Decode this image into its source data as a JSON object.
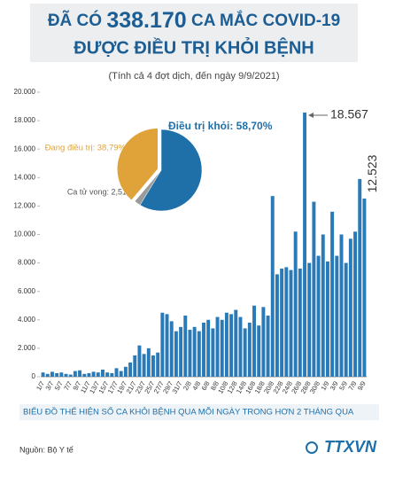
{
  "header": {
    "title": [
      "ĐÃ CÓ ",
      "338.170",
      " CA MẮC COVID-19",
      "ĐƯỢC ĐIỀU TRỊ KHỎI BỆNH"
    ],
    "subtitle": "(Tính cả 4 đợt dịch, đến ngày 9/9/2021)"
  },
  "caption": "BIỂU ĐỒ THỂ HIỆN SỐ CA KHỎI BỆNH QUA MỖI NGÀY TRONG HƠN 2 THÁNG QUA",
  "source": "Nguồn: Bộ Y tế",
  "logo": "TTXVN",
  "chart_data": [
    {
      "type": "bar",
      "color": "#2a7ab8",
      "categories": [
        "1/7",
        null,
        "3/7",
        null,
        "5/7",
        null,
        "7/7",
        null,
        "9/7",
        null,
        "11/7",
        null,
        "13/7",
        null,
        "15/7",
        null,
        "17/7",
        null,
        "19/7",
        null,
        "21/7",
        null,
        "23/7",
        null,
        "25/7",
        null,
        "27/7",
        null,
        "29/7",
        null,
        "31/7",
        null,
        "2/8",
        null,
        "4/8",
        null,
        "6/8",
        null,
        "8/8",
        null,
        "10/8",
        null,
        "12/8",
        null,
        "14/8",
        null,
        "16/8",
        null,
        "18/8",
        null,
        "20/8",
        null,
        "22/8",
        null,
        "24/8",
        null,
        "26/8",
        null,
        "28/8",
        null,
        "30/8",
        null,
        "1/9",
        null,
        "3/9",
        null,
        "5/9",
        null,
        "7/9",
        null,
        "9/9"
      ],
      "values": [
        300,
        200,
        350,
        250,
        300,
        200,
        150,
        400,
        450,
        200,
        250,
        350,
        300,
        500,
        300,
        250,
        600,
        400,
        700,
        1000,
        1500,
        2200,
        1600,
        2000,
        1500,
        1700,
        4500,
        4400,
        3900,
        3200,
        3500,
        4300,
        3300,
        3500,
        3200,
        3800,
        4000,
        3400,
        4200,
        4000,
        4500,
        4400,
        4700,
        4200,
        3400,
        3800,
        5000,
        3600,
        4900,
        4300,
        12700,
        7200,
        7600,
        7700,
        7500,
        10200,
        7600,
        18567,
        8000,
        12300,
        8500,
        10000,
        8100,
        11600,
        8500,
        10000,
        8000,
        9700,
        10200,
        13900,
        12523
      ],
      "value_labels": [
        null,
        null,
        null,
        null,
        null,
        null,
        null,
        null,
        null,
        null,
        null,
        null,
        null,
        null,
        null,
        null,
        null,
        null,
        null,
        null,
        null,
        null,
        null,
        null,
        null,
        null,
        null,
        null,
        null,
        null,
        null,
        null,
        null,
        null,
        null,
        null,
        null,
        null,
        null,
        null,
        null,
        null,
        null,
        null,
        null,
        null,
        null,
        null,
        null,
        null,
        null,
        null,
        null,
        null,
        null,
        null,
        null,
        "18.567",
        null,
        null,
        null,
        null,
        null,
        null,
        null,
        null,
        null,
        null,
        null,
        null,
        "12.523"
      ],
      "ylim": [
        0,
        20000
      ],
      "yticks": [
        0,
        {
          "value": 2000,
          "label": "2.000"
        },
        {
          "value": 4000,
          "label": "4.000"
        },
        {
          "value": 6000,
          "label": "6.000"
        },
        {
          "value": 8000,
          "label": "8.000"
        },
        {
          "value": 10000,
          "label": "10.000"
        },
        {
          "value": 12000,
          "label": "12.000"
        },
        {
          "value": 14000,
          "label": "14.000"
        },
        {
          "value": 16000,
          "label": "16.000"
        },
        {
          "value": 18000,
          "label": "18.000"
        },
        {
          "value": 20000,
          "label": "20.000"
        }
      ],
      "grid": false
    },
    {
      "type": "pie",
      "labels": [
        "Điều trị khỏi: 58,70%",
        "Ca tử vong: 2,51%",
        "Đang điều trị: 38,79%"
      ],
      "values": [
        58.7,
        2.51,
        38.79
      ],
      "colors": [
        "#1f6fa8",
        "#9a9a9a",
        "#e0a33a"
      ]
    }
  ]
}
